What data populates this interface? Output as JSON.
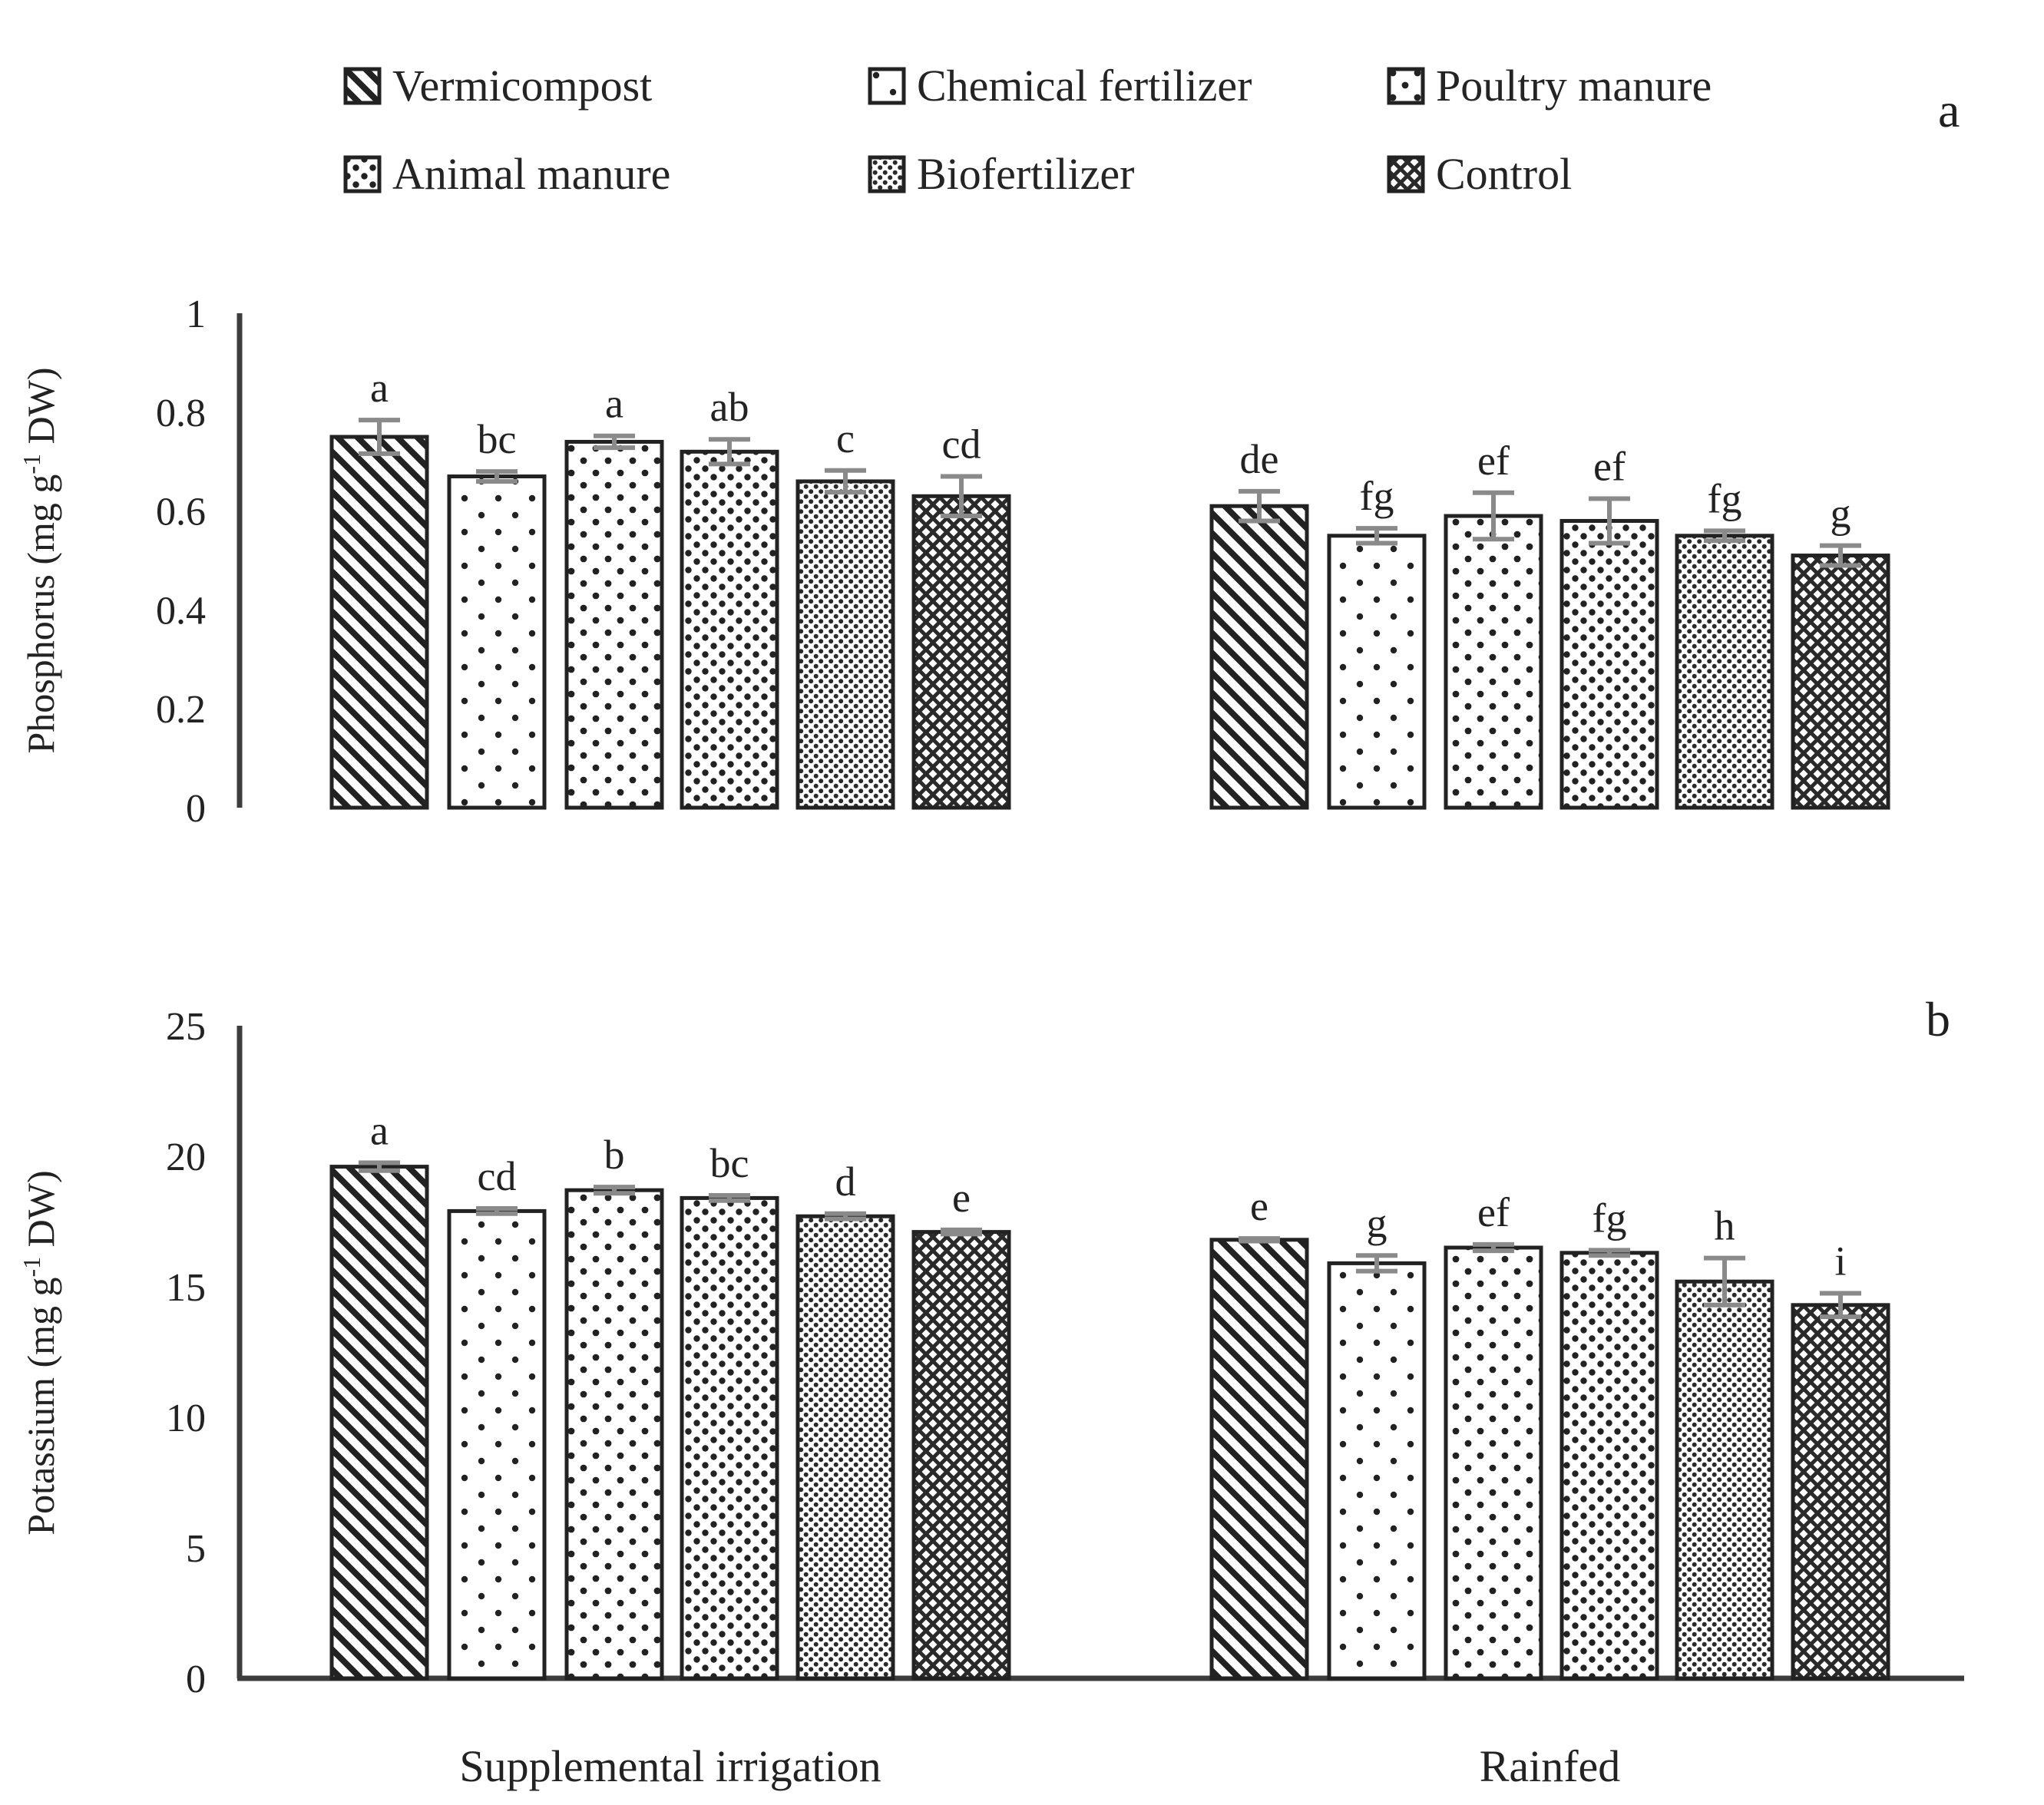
{
  "figure": {
    "panel_a_label": "a",
    "panel_b_label": "b"
  },
  "legend": {
    "items": [
      {
        "label": "Vermicompost",
        "pattern": "diag",
        "row": 1,
        "col": 1
      },
      {
        "label": "Chemical fertilizer",
        "pattern": "dots5",
        "row": 1,
        "col": 2
      },
      {
        "label": "Poultry manure",
        "pattern": "dots10",
        "row": 1,
        "col": 3
      },
      {
        "label": "Animal manure",
        "pattern": "dots20",
        "row": 2,
        "col": 1
      },
      {
        "label": "Biofertilizer",
        "pattern": "dots40",
        "row": 2,
        "col": 2
      },
      {
        "label": "Control",
        "pattern": "cross",
        "row": 2,
        "col": 3
      }
    ]
  },
  "chart_data": [
    {
      "type": "bar",
      "panel": "a",
      "ylabel_text": "Phosphorus (mg g-1 DW)",
      "ylabel_parts": {
        "before_sup": "Phosphorus (mg g",
        "superscript": "-1",
        "after_sup": " DW)"
      },
      "ylim": [
        0,
        1
      ],
      "ytick_values": [
        0,
        0.2,
        0.4,
        0.6,
        0.8,
        1
      ],
      "ytick_labels": [
        "0",
        "0.2",
        "0.4",
        "0.6",
        "0.8",
        "1"
      ],
      "grid": false,
      "x_axis_line_visible": false,
      "group_labels_visible": false,
      "groups": [
        {
          "label": "Supplemental irrigation",
          "bars": [
            {
              "treatment": "Vermicompost",
              "pattern": "diag",
              "value": 0.75,
              "error": 0.034,
              "letter": "a"
            },
            {
              "treatment": "Chemical fertilizer",
              "pattern": "dots5",
              "value": 0.67,
              "error": 0.01,
              "letter": "bc"
            },
            {
              "treatment": "Poultry manure",
              "pattern": "dots10",
              "value": 0.74,
              "error": 0.012,
              "letter": "a"
            },
            {
              "treatment": "Animal manure",
              "pattern": "dots20",
              "value": 0.72,
              "error": 0.025,
              "letter": "ab"
            },
            {
              "treatment": "Biofertilizer",
              "pattern": "dots40",
              "value": 0.66,
              "error": 0.022,
              "letter": "c"
            },
            {
              "treatment": "Control",
              "pattern": "cross",
              "value": 0.63,
              "error": 0.04,
              "letter": "cd"
            }
          ]
        },
        {
          "label": "Rainfed",
          "bars": [
            {
              "treatment": "Vermicompost",
              "pattern": "diag",
              "value": 0.61,
              "error": 0.03,
              "letter": "de"
            },
            {
              "treatment": "Chemical fertilizer",
              "pattern": "dots5",
              "value": 0.55,
              "error": 0.015,
              "letter": "fg"
            },
            {
              "treatment": "Poultry manure",
              "pattern": "dots10",
              "value": 0.59,
              "error": 0.047,
              "letter": "ef"
            },
            {
              "treatment": "Animal manure",
              "pattern": "dots20",
              "value": 0.58,
              "error": 0.045,
              "letter": "ef"
            },
            {
              "treatment": "Biofertilizer",
              "pattern": "dots40",
              "value": 0.55,
              "error": 0.01,
              "letter": "fg"
            },
            {
              "treatment": "Control",
              "pattern": "cross",
              "value": 0.51,
              "error": 0.02,
              "letter": "g"
            }
          ]
        }
      ]
    },
    {
      "type": "bar",
      "panel": "b",
      "ylabel_text": "Potassium (mg g-1 DW)",
      "ylabel_parts": {
        "before_sup": "Potassium (mg g",
        "superscript": "-1",
        "after_sup": " DW)"
      },
      "ylim": [
        0,
        25
      ],
      "ytick_values": [
        0,
        5,
        10,
        15,
        20,
        25
      ],
      "ytick_labels": [
        "0",
        "5",
        "10",
        "15",
        "20",
        "25"
      ],
      "grid": false,
      "x_axis_line_visible": true,
      "group_labels_visible": true,
      "groups": [
        {
          "label": "Supplemental irrigation",
          "bars": [
            {
              "treatment": "Vermicompost",
              "pattern": "diag",
              "value": 19.6,
              "error": 0.15,
              "letter": "a"
            },
            {
              "treatment": "Chemical fertilizer",
              "pattern": "dots5",
              "value": 17.9,
              "error": 0.1,
              "letter": "cd"
            },
            {
              "treatment": "Poultry manure",
              "pattern": "dots10",
              "value": 18.7,
              "error": 0.12,
              "letter": "b"
            },
            {
              "treatment": "Animal manure",
              "pattern": "dots20",
              "value": 18.4,
              "error": 0.1,
              "letter": "bc"
            },
            {
              "treatment": "Biofertilizer",
              "pattern": "dots40",
              "value": 17.7,
              "error": 0.1,
              "letter": "d"
            },
            {
              "treatment": "Control",
              "pattern": "cross",
              "value": 17.1,
              "error": 0.08,
              "letter": "e"
            }
          ]
        },
        {
          "label": "Rainfed",
          "bars": [
            {
              "treatment": "Vermicompost",
              "pattern": "diag",
              "value": 16.8,
              "error": 0.05,
              "letter": "e"
            },
            {
              "treatment": "Chemical fertilizer",
              "pattern": "dots5",
              "value": 15.9,
              "error": 0.3,
              "letter": "g"
            },
            {
              "treatment": "Poultry manure",
              "pattern": "dots10",
              "value": 16.5,
              "error": 0.12,
              "letter": "ef"
            },
            {
              "treatment": "Animal manure",
              "pattern": "dots20",
              "value": 16.3,
              "error": 0.1,
              "letter": "fg"
            },
            {
              "treatment": "Biofertilizer",
              "pattern": "dots40",
              "value": 15.2,
              "error": 0.9,
              "letter": "h"
            },
            {
              "treatment": "Control",
              "pattern": "cross",
              "value": 14.3,
              "error": 0.45,
              "letter": "i"
            }
          ]
        }
      ]
    }
  ]
}
